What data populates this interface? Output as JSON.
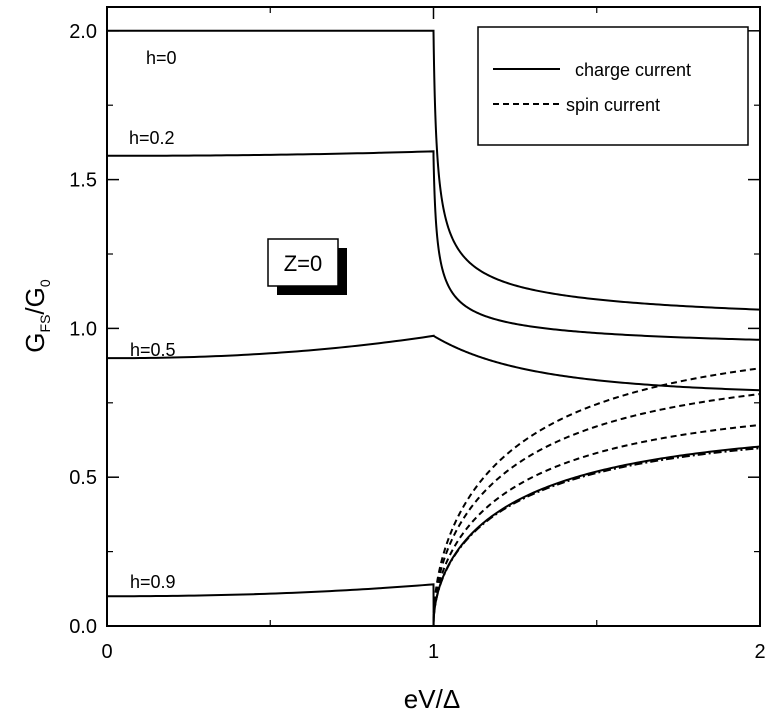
{
  "chart_data": {
    "type": "line",
    "xlabel": "eV/Δ",
    "ylabel": {
      "G": "G",
      "sub1": "FS",
      "slash": "/G",
      "sub2": "0"
    },
    "xlim": [
      0,
      2
    ],
    "ylim": [
      0,
      2.08
    ],
    "x_ticks": [
      "0",
      "1",
      "2"
    ],
    "y_ticks": [
      "0.0",
      "0.5",
      "1.0",
      "1.5",
      "2.0"
    ],
    "grid": false,
    "legend": {
      "position": "top-right",
      "entries": [
        {
          "label": "charge current",
          "style": "solid"
        },
        {
          "label": "spin current",
          "style": "dashed"
        }
      ]
    },
    "annotation_box": "Z=0",
    "curve_labels": [
      "h=0",
      "h=0.2",
      "h=0.5",
      "h=0.9"
    ],
    "series": [
      {
        "h": 0,
        "kind": "charge",
        "sub": 2.0,
        "gap_end": 2.0,
        "asym": 1.0,
        "style": "solid"
      },
      {
        "h": 0.2,
        "kind": "charge",
        "sub": 1.58,
        "gap_end": 1.595,
        "asym": 0.92,
        "style": "solid"
      },
      {
        "h": 0.5,
        "kind": "charge",
        "sub": 0.9,
        "gap_end": 0.975,
        "asym": 0.77,
        "style": "solid"
      },
      {
        "h": 0.9,
        "kind": "charge",
        "sub": 0.1,
        "gap_end": 0.14,
        "asym": 0.7,
        "style": "solid"
      },
      {
        "h": 0.2,
        "kind": "spin",
        "end": 1.0,
        "style": "dashed"
      },
      {
        "h": 0.5,
        "kind": "spin",
        "end": 0.9,
        "style": "dashed"
      },
      {
        "h": 0.9,
        "kind": "spin",
        "end": 0.78,
        "style": "dashed"
      },
      {
        "h": 0.9,
        "kind": "spin",
        "end": 0.69,
        "style": "dashdot"
      }
    ]
  }
}
